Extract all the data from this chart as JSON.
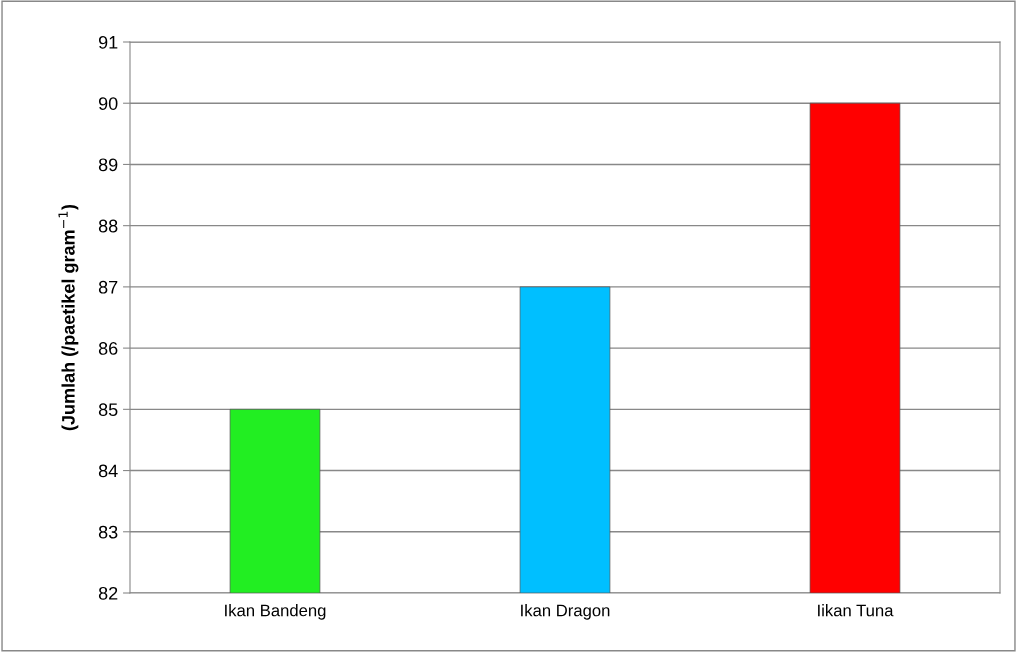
{
  "chart_data": {
    "type": "bar",
    "ylabel": "(Jumlah (/paetikel gram$^{−1}$)",
    "categories": [
      "Ikan Bandeng",
      "Ikan Dragon",
      "Iikan Tuna"
    ],
    "values": [
      85,
      87,
      90
    ],
    "colors": [
      "#22ee22",
      "#00bfff",
      "#ff0000"
    ],
    "ylim": [
      82,
      91
    ],
    "yticks": [
      82,
      83,
      84,
      85,
      86,
      87,
      88,
      89,
      90,
      91
    ],
    "grid": "y"
  }
}
